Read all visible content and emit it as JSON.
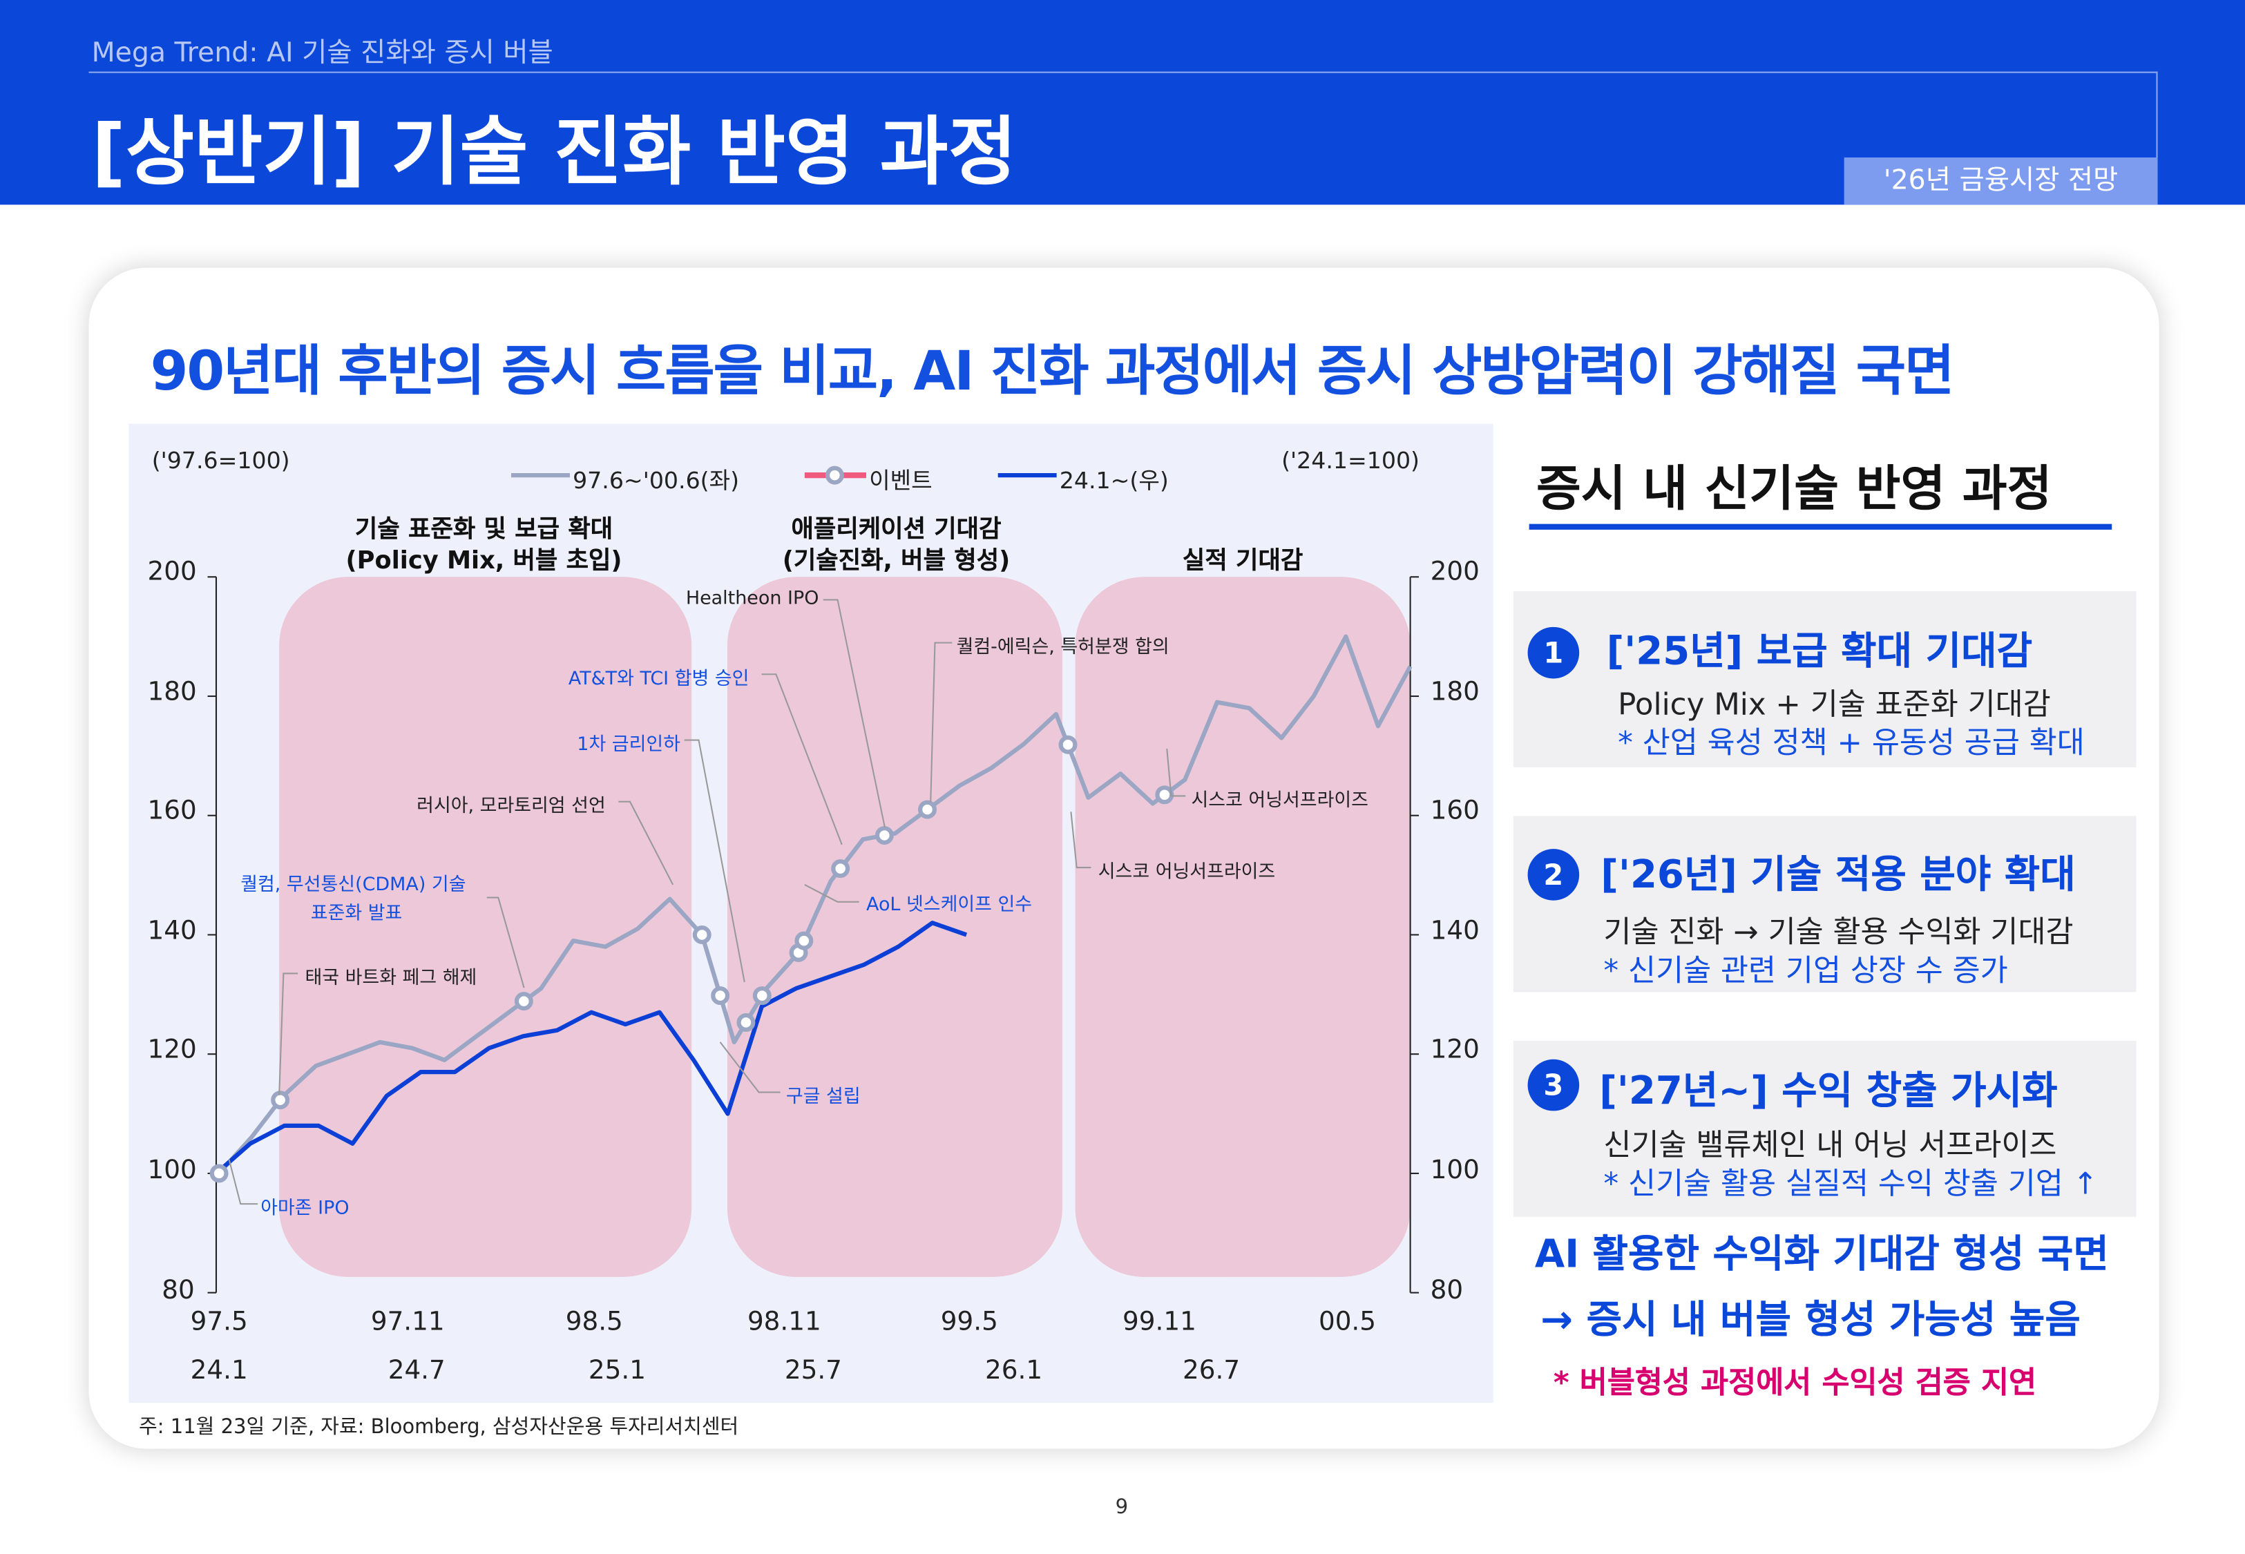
{
  "header": {
    "subtitle": "Mega Trend: AI 기술 진화와 증시 버블",
    "title": "[상반기] 기술 진화 반영 과정",
    "badge": "'26년 금융시장 전망"
  },
  "headline": "90년대 후반의 증시 흐름을 비교, AI 진화 과정에서 증시 상방압력이 강해질 국면",
  "chart_data": {
    "type": "line",
    "left_axis_label": "('97.6=100)",
    "right_axis_label": "('24.1=100)",
    "ylim": [
      80,
      200
    ],
    "yticks": [
      "200",
      "180",
      "160",
      "140",
      "120",
      "100",
      "80"
    ],
    "xticks_top": [
      "97.5",
      "97.11",
      "98.5",
      "98.11",
      "99.5",
      "99.11",
      "00.5"
    ],
    "xticks_bottom": [
      "24.1",
      "24.7",
      "25.1",
      "25.7",
      "26.1",
      "26.7"
    ],
    "legend": [
      "97.6~'00.6(좌)",
      "이벤트",
      "24.1~(우)"
    ],
    "legend_placement": "top",
    "colors": {
      "past": "#9aa6c4",
      "event": "#f05a7e",
      "current": "#0b3fd6",
      "phase_band": "#ecc8d8"
    },
    "phases": [
      {
        "title": "기술 표준화 및 보급 확대",
        "subtitle": "(Policy Mix, 버블 초입)"
      },
      {
        "title": "애플리케이션 기대감",
        "subtitle": "(기술진화, 버블 형성)"
      },
      {
        "title": "실적 기대감",
        "subtitle": ""
      }
    ],
    "series": [
      {
        "name": "97.6~'00.6(좌)",
        "axis": "left",
        "start": "1997-06",
        "values": [
          100,
          106,
          113,
          118,
          120,
          122,
          121,
          119,
          123,
          127,
          131,
          139,
          138,
          141,
          146,
          140,
          122,
          131,
          137,
          149,
          156,
          157,
          161,
          165,
          168,
          172,
          177,
          163,
          167,
          162,
          166,
          179,
          178,
          173,
          180,
          190,
          175,
          185
        ]
      },
      {
        "name": "24.1~(우)",
        "axis": "right",
        "start": "2024-01",
        "values": [
          100,
          105,
          108,
          108,
          105,
          113,
          117,
          117,
          121,
          123,
          124,
          127,
          125,
          127,
          119,
          110,
          128,
          131,
          133,
          135,
          138,
          142,
          140
        ]
      }
    ],
    "events": [
      {
        "date": "1997-06-01",
        "label": "아마존 IPO",
        "highlight": true
      },
      {
        "date": "1997-07-28",
        "label": "태국 바트화 페그 해제",
        "highlight": false
      },
      {
        "date": "1998-03-15",
        "label": "퀄컴, 무선통신(CDMA) 기술 표준화 발표",
        "label_line1": "퀄컴, 무선통신(CDMA) 기술",
        "label_line2": "표준화 발표",
        "highlight": true
      },
      {
        "date": "1998-09-01",
        "label": "러시아, 모라토리엄 선언",
        "highlight": false
      },
      {
        "date": "1998-09-18",
        "label": "구글 설립",
        "highlight": true
      },
      {
        "date": "1998-10-12",
        "label": "1차 금리인하",
        "highlight": true
      },
      {
        "date": "1998-10-27",
        "label": "",
        "highlight": false
      },
      {
        "date": "1998-12-01",
        "label": "",
        "highlight": false
      },
      {
        "date": "1998-12-06",
        "label": "AoL 넷스케이프 인수",
        "highlight": true
      },
      {
        "date": "1999-01-10",
        "label": "AT&T와 TCI 합병 승인",
        "highlight": true
      },
      {
        "date": "1999-02-21",
        "label": "Healtheon IPO",
        "highlight": false
      },
      {
        "date": "1999-04-01",
        "label": "퀄컴-에릭슨, 특허분쟁 합의",
        "highlight": false
      },
      {
        "date": "1999-08-12",
        "label": "시스코 어닝서프라이즈",
        "highlight": false
      },
      {
        "date": "1999-11-12",
        "label": "시스코 어닝서프라이즈",
        "highlight": false
      }
    ]
  },
  "right_panel": {
    "title": "증시 내 신기술 반영 과정",
    "items": [
      {
        "num": "1",
        "title": "['25년] 보급 확대 기대감",
        "line1": "Policy Mix + 기술 표준화 기대감",
        "line2": "* 산업 육성 정책 + 유동성 공급 확대"
      },
      {
        "num": "2",
        "title": "['26년] 기술 적용 분야 확대",
        "line1": "기술 진화 → 기술 활용 수익화 기대감",
        "line2": "* 신기술 관련 기업 상장 수 증가"
      },
      {
        "num": "3",
        "title": "['27년~] 수익 창출 가시화",
        "line1": "신기술 밸류체인 내 어닝 서프라이즈",
        "line2": "* 신기술 활용 실질적 수익 창출 기업 ↑"
      }
    ],
    "conclusion1": "AI 활용한 수익화 기대감 형성 국면",
    "conclusion2": "→ 증시 내 버블 형성 가능성 높음",
    "note": "* 버블형성 과정에서 수익성 검증 지연"
  },
  "footnote": "주: 11월 23일 기준, 자료: Bloomberg, 삼성자산운용 투자리서치센터",
  "page_number": "9"
}
